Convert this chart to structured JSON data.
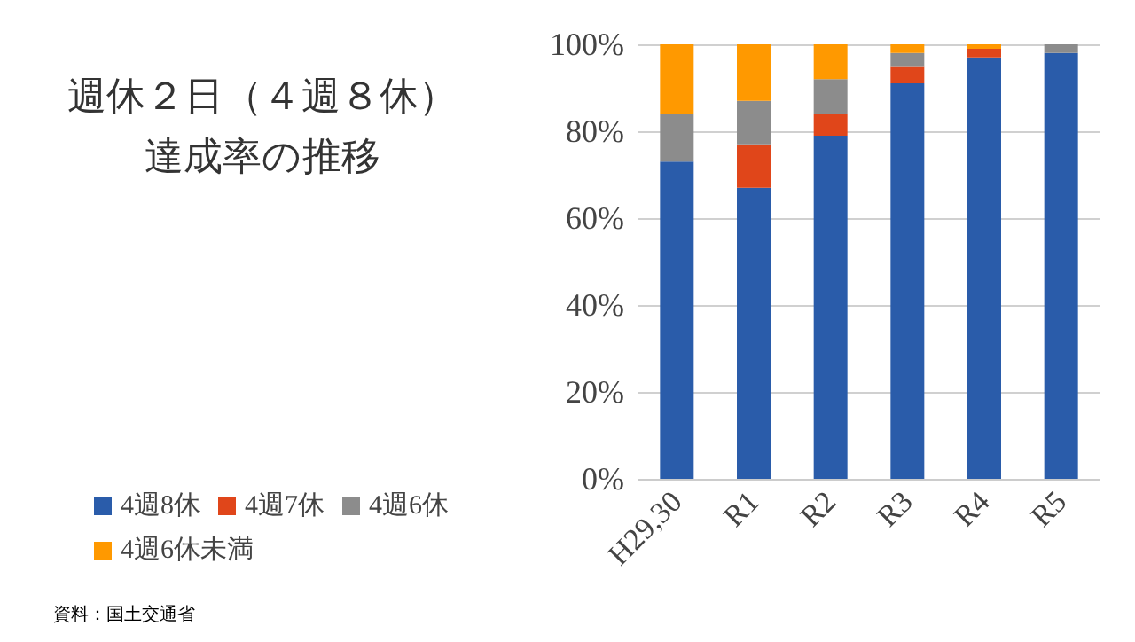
{
  "chart_data": {
    "type": "bar",
    "stacked": true,
    "title": "週休２日（４週８休）",
    "subtitle": "達成率の推移",
    "categories": [
      "H29,30",
      "R1",
      "R2",
      "R3",
      "R4",
      "R5"
    ],
    "series": [
      {
        "name": "4週8休",
        "color": "#2a5caa",
        "values": [
          73,
          67,
          79,
          91,
          97,
          98
        ]
      },
      {
        "name": "4週7休",
        "color": "#e0461a",
        "values": [
          0,
          10,
          5,
          4,
          2,
          0
        ]
      },
      {
        "name": "4週6休",
        "color": "#8c8c8c",
        "values": [
          11,
          10,
          8,
          3,
          0,
          2
        ]
      },
      {
        "name": "4週6休未満",
        "color": "#ff9900",
        "values": [
          16,
          13,
          8,
          2,
          1,
          0
        ]
      }
    ],
    "ylim": [
      0,
      100
    ],
    "yticks": [
      {
        "value": 0,
        "label": "0%"
      },
      {
        "value": 20,
        "label": "20%"
      },
      {
        "value": 40,
        "label": "40%"
      },
      {
        "value": 60,
        "label": "60%"
      },
      {
        "value": 80,
        "label": "80%"
      },
      {
        "value": 100,
        "label": "100%"
      }
    ],
    "grid": "y",
    "legend": "bottom left",
    "annotations": [
      "資料：国土交通省"
    ]
  }
}
